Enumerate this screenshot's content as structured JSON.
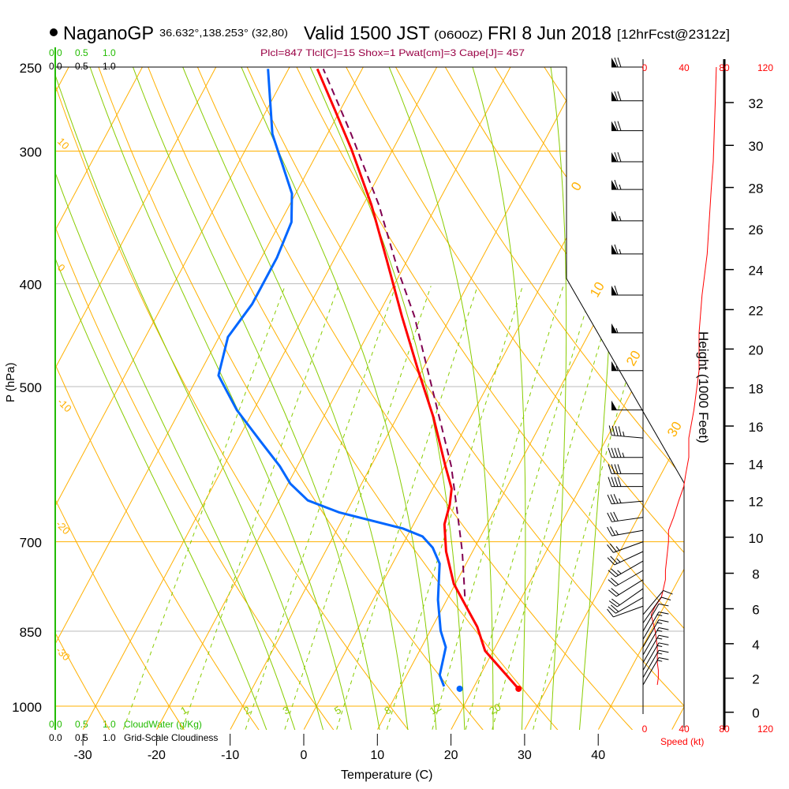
{
  "header": {
    "station": "NaganoGP",
    "coords": "36.632°,138.253° (32,80)",
    "valid": "Valid 1500 JST",
    "utc": "(0600Z)",
    "date": "FRI 8 Jun 2018",
    "forecast": "[12hrFcst@2312z]"
  },
  "indices": "Plcl=847 Tlcl[C]=15 Shox=1 Pwat[cm]=3 Cape[J]= 457",
  "cloud_legend": {
    "scale": [
      "0.0",
      "0.5",
      "1.0"
    ],
    "cloudwater_label": "CloudWater (g/Kg)",
    "cloudiness_label": "Grid-Scale Cloudiness"
  },
  "colors": {
    "temperature": "#ff0000",
    "dewpoint": "#0066ff",
    "parcel": "#800050",
    "isotherm": "#ffb000",
    "moist": "#88cc00",
    "indices": "#990044",
    "cloudwater": "#22bb00",
    "speed": "#ff0000"
  },
  "chart_data": {
    "type": "line",
    "title": "NaganoGP Valid 1500 JST FRI 8 Jun 2018",
    "xlabel": "Temperature (C)",
    "ylabel": "P (hPa)",
    "y2label": "Height (1000 Feet)",
    "speed_label": "Speed (kt)",
    "pressure_ticks": [
      "250",
      "300",
      "400",
      "500",
      "700",
      "850",
      "1000"
    ],
    "temperature_ticks": [
      "-30",
      "-20",
      "-10",
      "0",
      "10",
      "20",
      "30",
      "40"
    ],
    "height_ticks": [
      "0",
      "2",
      "4",
      "6",
      "8",
      "10",
      "12",
      "14",
      "16",
      "18",
      "20",
      "22",
      "24",
      "26",
      "28",
      "30",
      "32"
    ],
    "speed_ticks": [
      "0",
      "40",
      "80",
      "120"
    ],
    "isotherm_labels": [
      "0",
      "10",
      "20",
      "30"
    ],
    "theta_labels": [
      "10",
      "0",
      "-10",
      "-20",
      "-30"
    ],
    "mixing_ratio_labels": [
      "1",
      "2",
      "3",
      "5",
      "8",
      "12",
      "20"
    ],
    "temperature": [
      [
        963,
        26.2
      ],
      [
        887,
        18.9
      ],
      [
        842,
        16.1
      ],
      [
        815,
        13.9
      ],
      [
        767,
        9.8
      ],
      [
        715,
        6.4
      ],
      [
        674,
        4.2
      ],
      [
        646,
        3.5
      ],
      [
        624,
        2.6
      ],
      [
        594,
        0.1
      ],
      [
        534,
        -5.1
      ],
      [
        483,
        -10.5
      ],
      [
        429,
        -16.7
      ],
      [
        380,
        -22.8
      ],
      [
        337,
        -28.9
      ],
      [
        299,
        -35.6
      ],
      [
        275,
        -40.6
      ],
      [
        251,
        -46.1
      ]
    ],
    "dewpoint": [
      [
        958,
        15.9
      ],
      [
        935,
        14.5
      ],
      [
        880,
        13.3
      ],
      [
        849,
        11.4
      ],
      [
        794,
        8.8
      ],
      [
        734,
        6.4
      ],
      [
        709,
        4.3
      ],
      [
        692,
        2.1
      ],
      [
        680,
        -1.2
      ],
      [
        657,
        -10.9
      ],
      [
        640,
        -16.1
      ],
      [
        617,
        -19.7
      ],
      [
        594,
        -22.4
      ],
      [
        563,
        -26.8
      ],
      [
        526,
        -32.3
      ],
      [
        488,
        -37.3
      ],
      [
        449,
        -38.8
      ],
      [
        418,
        -37.9
      ],
      [
        378,
        -37.9
      ],
      [
        350,
        -38.5
      ],
      [
        329,
        -40.5
      ],
      [
        289,
        -47.5
      ],
      [
        251,
        -52.8
      ]
    ],
    "parcel": [
      [
        788,
        12.2
      ],
      [
        715,
        8.6
      ],
      [
        646,
        4.4
      ],
      [
        594,
        0.9
      ],
      [
        545,
        -3.3
      ],
      [
        492,
        -8.3
      ],
      [
        429,
        -15.0
      ],
      [
        388,
        -20.6
      ],
      [
        337,
        -27.9
      ],
      [
        289,
        -36.8
      ],
      [
        251,
        -45.3
      ]
    ],
    "surface": {
      "p": 963,
      "t": 26.2,
      "td": 18.2
    },
    "winds": [
      [
        250,
        270,
        72
      ],
      [
        269,
        270,
        71
      ],
      [
        287,
        270,
        70
      ],
      [
        307,
        270,
        69
      ],
      [
        326,
        270,
        67
      ],
      [
        349,
        270,
        65
      ],
      [
        375,
        270,
        63
      ],
      [
        410,
        270,
        58
      ],
      [
        445,
        270,
        55
      ],
      [
        483,
        270,
        55
      ],
      [
        526,
        270,
        50
      ],
      [
        559,
        275,
        45
      ],
      [
        583,
        270,
        45
      ],
      [
        604,
        270,
        42
      ],
      [
        621,
        270,
        40
      ],
      [
        641,
        265,
        35
      ],
      [
        664,
        262,
        30
      ],
      [
        683,
        260,
        25
      ],
      [
        700,
        250,
        25
      ],
      [
        715,
        245,
        24
      ],
      [
        730,
        240,
        23
      ],
      [
        745,
        240,
        22
      ],
      [
        760,
        238,
        22
      ],
      [
        775,
        235,
        20
      ],
      [
        790,
        240,
        18
      ],
      [
        805,
        250,
        12
      ],
      [
        820,
        40,
        8
      ],
      [
        835,
        35,
        10
      ],
      [
        850,
        30,
        12
      ],
      [
        865,
        30,
        13
      ],
      [
        880,
        30,
        14
      ],
      [
        895,
        30,
        14
      ],
      [
        910,
        30,
        14
      ],
      [
        925,
        30,
        15
      ],
      [
        940,
        30,
        15
      ],
      [
        955,
        30,
        14
      ]
    ],
    "xlim": [
      -35,
      45
    ],
    "ylim": [
      1050,
      250
    ],
    "grid": true
  }
}
